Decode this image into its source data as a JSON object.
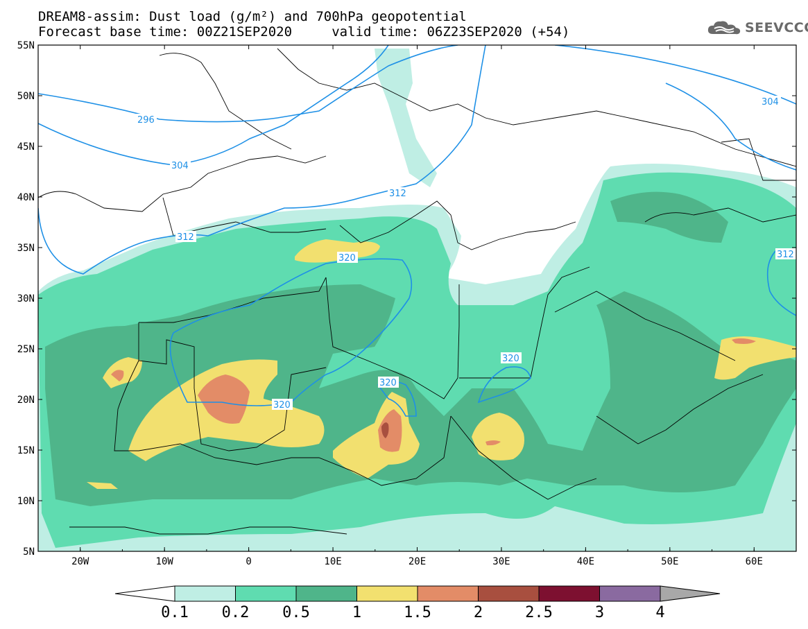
{
  "title_line1": "DREAM8-assim: Dust load (g/m²) and 700hPa geopotential",
  "title_line2": "Forecast base time: 00Z21SEP2020     valid time: 06Z23SEP2020 (+54)",
  "logo_text": "SEEVCCC",
  "map": {
    "lon_range": [
      -25,
      65
    ],
    "lat_range": [
      5,
      55
    ],
    "lat_ticks": [
      "55N",
      "50N",
      "45N",
      "40N",
      "35N",
      "30N",
      "25N",
      "20N",
      "15N",
      "10N",
      "5N"
    ],
    "lon_ticks": [
      "20W",
      "10W",
      "0",
      "10E",
      "20E",
      "30E",
      "40E",
      "50E",
      "60E"
    ],
    "geopotential_contour_labels": [
      "296",
      "304",
      "304",
      "312",
      "312",
      "320",
      "320",
      "320",
      "320",
      "312"
    ],
    "colors": {
      "very_light": "#bfeee4",
      "light_green": "#5fdcb0",
      "mid_green": "#4fb58a",
      "yellow": "#f2e06f",
      "orange": "#e38c67",
      "red_brown": "#a84f3f",
      "contour": "#1e90e6",
      "land_border": "#000000"
    }
  },
  "colorbar": {
    "labels": [
      "0.1",
      "0.2",
      "0.5",
      "1",
      "1.5",
      "2",
      "2.5",
      "3",
      "4"
    ],
    "colors": [
      "#bfeee4",
      "#5fdcb0",
      "#4fb58a",
      "#f2e06f",
      "#e38c67",
      "#a84f3f",
      "#7d1030",
      "#8a6aa0"
    ]
  }
}
